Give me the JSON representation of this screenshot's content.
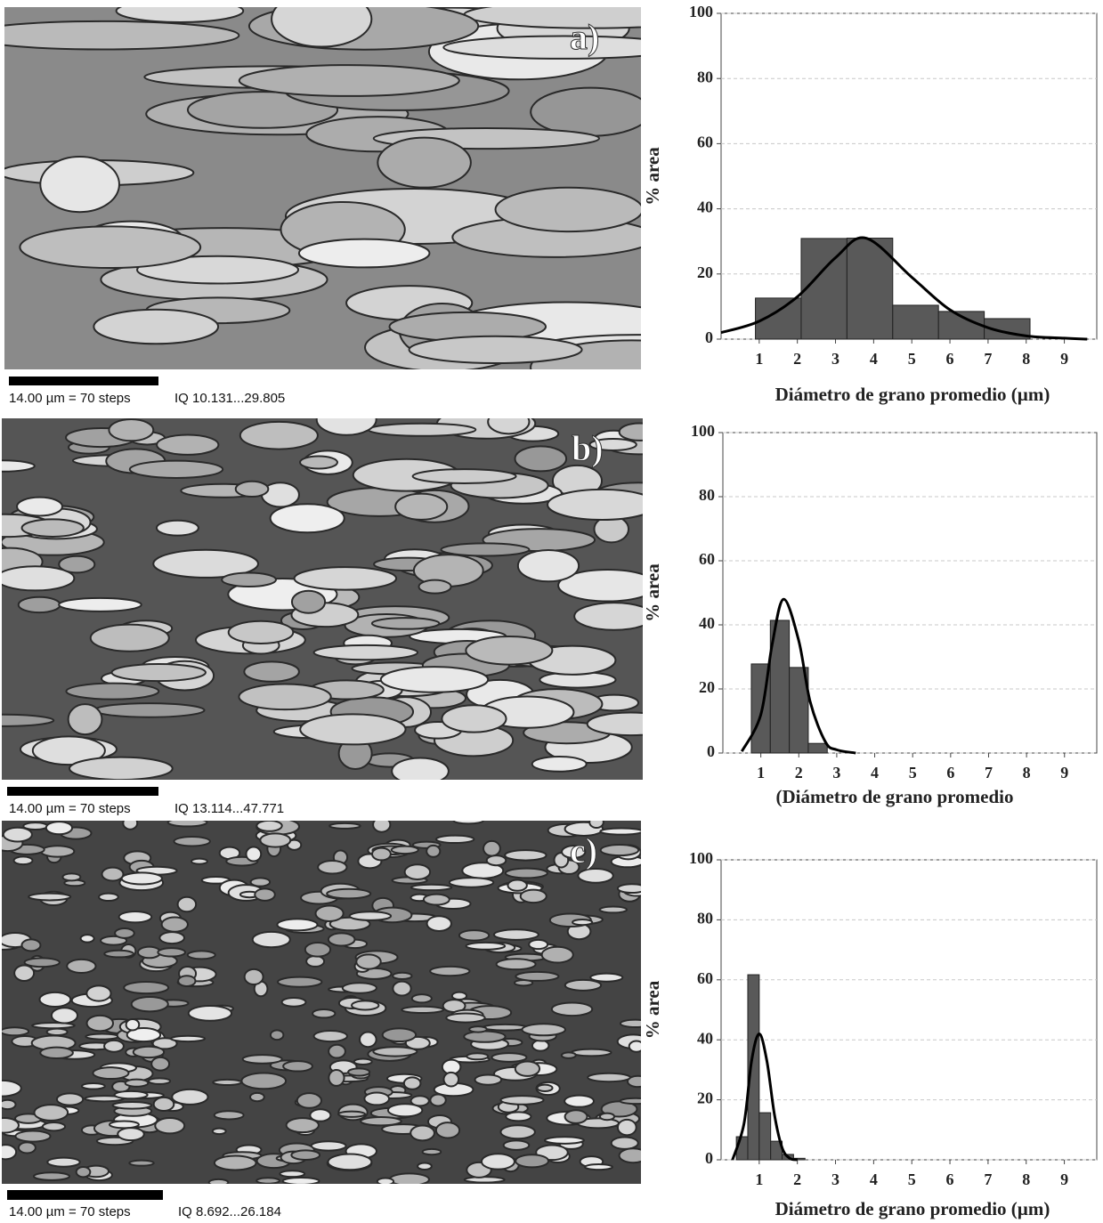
{
  "chart_data": [
    {
      "type": "histogram",
      "ylabel": "% area",
      "xlabel": "Diámetro de grano promedio  (µm)",
      "bins": [
        0.9,
        2.1,
        3.3,
        4.5,
        5.7,
        6.9,
        8.1
      ],
      "counts": [
        12.6,
        30.9,
        31,
        10.4,
        8.5,
        6.3
      ],
      "color": "#595959",
      "fit": {
        "x": [
          0,
          1,
          2,
          3,
          3.8,
          5,
          6,
          7,
          8,
          9,
          9.6
        ],
        "values": [
          2,
          5.5,
          13,
          25,
          31,
          19,
          9,
          3.5,
          1,
          0.3,
          0
        ],
        "color": "#000000"
      },
      "xlim": [
        0,
        9.85
      ],
      "ylim": [
        0,
        100
      ],
      "xticks": [
        1,
        2,
        3,
        4,
        5,
        6,
        7,
        8,
        9
      ],
      "yticks": [
        0,
        20,
        40,
        60,
        80,
        100
      ],
      "grid": true
    },
    {
      "type": "histogram",
      "ylabel": "% area",
      "xlabel": "(Diámetro  de grano promedio",
      "bins": [
        0.75,
        1.25,
        1.75,
        2.25,
        2.75
      ],
      "counts": [
        27.8,
        41.4,
        26.7,
        3
      ],
      "color": "#595959",
      "fit": {
        "x": [
          0.5,
          1,
          1.3,
          1.6,
          2,
          2.3,
          2.7,
          3,
          3.5
        ],
        "values": [
          0.5,
          12,
          34,
          48,
          35,
          16,
          3.5,
          1,
          0
        ],
        "color": "#000000"
      },
      "xlim": [
        0,
        9.85
      ],
      "ylim": [
        0,
        100
      ],
      "xticks": [
        1,
        2,
        3,
        4,
        5,
        6,
        7,
        8,
        9
      ],
      "yticks": [
        0,
        20,
        40,
        60,
        80,
        100
      ],
      "grid": true
    },
    {
      "type": "histogram",
      "ylabel": "% area",
      "xlabel": "Diámetro de grano promedio (µm)",
      "bins": [
        0.4,
        0.7,
        1.0,
        1.3,
        1.6,
        1.9,
        2.2
      ],
      "counts": [
        7.7,
        61.7,
        15.7,
        6.2,
        1.8,
        0.5
      ],
      "color": "#595959",
      "fit": {
        "x": [
          0.3,
          0.6,
          0.8,
          1.0,
          1.2,
          1.4,
          1.6,
          1.8,
          2.0
        ],
        "values": [
          0,
          12,
          33,
          42,
          33,
          15,
          4,
          0.5,
          0
        ],
        "color": "#000000"
      },
      "xlim": [
        0,
        9.85
      ],
      "ylim": [
        0,
        100
      ],
      "xticks": [
        1,
        2,
        3,
        4,
        5,
        6,
        7,
        8,
        9
      ],
      "yticks": [
        0,
        20,
        40,
        60,
        80,
        100
      ],
      "grid": true
    }
  ],
  "micrographs": [
    {
      "label": "a)",
      "scale": "14.00 µm = 70 steps",
      "iq": "IQ 10.131...29.805"
    },
    {
      "label": "b)",
      "scale": "14.00 µm = 70 steps",
      "iq": "IQ 13.114...47.771"
    },
    {
      "label": "c)",
      "scale": "14.00 µm = 70 steps",
      "iq": "IQ 8.692...26.184"
    }
  ]
}
